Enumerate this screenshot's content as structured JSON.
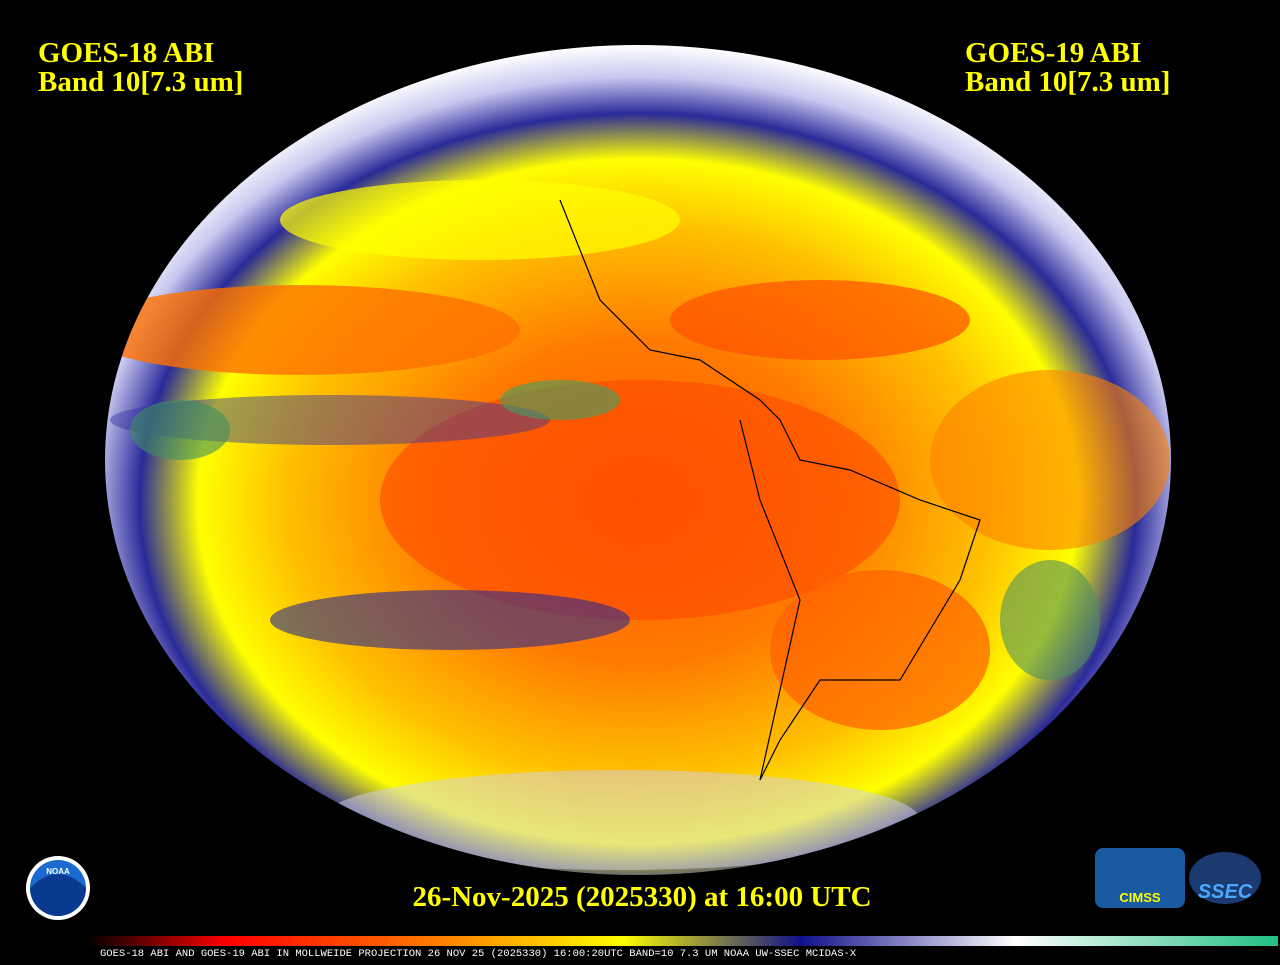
{
  "header": {
    "left": {
      "satellite": "GOES-18 ABI",
      "band": "Band 10[7.3 um]"
    },
    "right": {
      "satellite": "GOES-19 ABI",
      "band": "Band 10[7.3 um]"
    }
  },
  "timestamp": "26-Nov-2025 (2025330) at 16:00 UTC",
  "footer": "GOES-18 ABI AND GOES-19 ABI IN MOLLWEIDE PROJECTION 26 NOV 25 (2025330) 16:00:20UTC BAND=10 7.3 UM NOAA UW-SSEC MCIDAS-X",
  "logos": {
    "noaa": "NOAA",
    "cimss": "CIMSS",
    "ssec": "SSEC"
  }
}
